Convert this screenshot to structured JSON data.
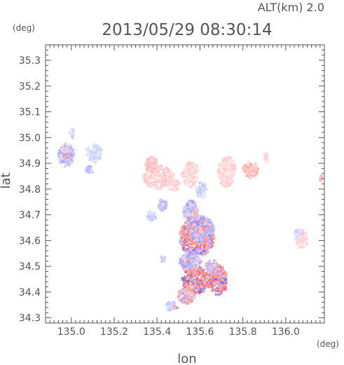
{
  "chart_data": {
    "type": "heatmap",
    "title": "2013/05/29 08:30:14",
    "subtitle": "ALT(km) 2.0",
    "xlabel": "lon",
    "ylabel": "lat",
    "xunit": "(deg)",
    "yunit": "(deg)",
    "xlim": [
      134.88,
      136.18
    ],
    "ylim": [
      34.28,
      35.36
    ],
    "xticks": [
      135.0,
      135.2,
      135.4,
      135.6,
      135.8,
      136.0
    ],
    "xtick_labels": [
      "135.0",
      "135.2",
      "135.4",
      "135.6",
      "135.8",
      "136.0"
    ],
    "yticks": [
      34.3,
      34.4,
      34.5,
      34.6,
      34.7,
      34.8,
      34.9,
      35.0,
      35.1,
      35.2,
      35.3
    ],
    "ytick_labels": [
      "34.3",
      "34.4",
      "34.5",
      "34.6",
      "34.7",
      "34.8",
      "34.9",
      "35.0",
      "35.1",
      "35.2",
      "35.3"
    ],
    "colors": {
      "negative": "#6a6aff",
      "positive": "#ff5a5a",
      "axis": "#555555"
    },
    "regions": [
      {
        "lon": 134.97,
        "lat": 34.935,
        "rlon": 0.035,
        "rlat": 0.045,
        "sign": -1,
        "intensity": 0.55
      },
      {
        "lon": 135.0,
        "lat": 35.02,
        "rlon": 0.012,
        "rlat": 0.02,
        "sign": -1,
        "intensity": 0.3
      },
      {
        "lon": 135.1,
        "lat": 34.945,
        "rlon": 0.035,
        "rlat": 0.035,
        "sign": -1,
        "intensity": 0.3
      },
      {
        "lon": 135.08,
        "lat": 34.88,
        "rlon": 0.018,
        "rlat": 0.015,
        "sign": -1,
        "intensity": 0.45
      },
      {
        "lon": 135.4,
        "lat": 34.85,
        "rlon": 0.07,
        "rlat": 0.045,
        "sign": 1,
        "intensity": 0.35
      },
      {
        "lon": 135.37,
        "lat": 34.9,
        "rlon": 0.03,
        "rlat": 0.03,
        "sign": 1,
        "intensity": 0.4
      },
      {
        "lon": 135.47,
        "lat": 34.82,
        "rlon": 0.03,
        "rlat": 0.02,
        "sign": 1,
        "intensity": 0.3
      },
      {
        "lon": 135.55,
        "lat": 34.86,
        "rlon": 0.04,
        "rlat": 0.05,
        "sign": 1,
        "intensity": 0.3
      },
      {
        "lon": 135.72,
        "lat": 34.87,
        "rlon": 0.04,
        "rlat": 0.06,
        "sign": 1,
        "intensity": 0.3
      },
      {
        "lon": 135.83,
        "lat": 34.88,
        "rlon": 0.035,
        "rlat": 0.035,
        "sign": 1,
        "intensity": 0.45
      },
      {
        "lon": 135.9,
        "lat": 34.93,
        "rlon": 0.01,
        "rlat": 0.02,
        "sign": 1,
        "intensity": 0.3
      },
      {
        "lon": 136.07,
        "lat": 34.61,
        "rlon": 0.03,
        "rlat": 0.035,
        "sign": 1,
        "intensity": 0.3
      },
      {
        "lon": 136.05,
        "lat": 34.63,
        "rlon": 0.018,
        "rlat": 0.02,
        "sign": -1,
        "intensity": 0.3
      },
      {
        "lon": 136.16,
        "lat": 34.845,
        "rlon": 0.01,
        "rlat": 0.012,
        "sign": 1,
        "intensity": 0.5
      },
      {
        "lon": 135.42,
        "lat": 34.74,
        "rlon": 0.02,
        "rlat": 0.025,
        "sign": -1,
        "intensity": 0.45
      },
      {
        "lon": 135.37,
        "lat": 34.7,
        "rlon": 0.02,
        "rlat": 0.02,
        "sign": -1,
        "intensity": 0.35
      },
      {
        "lon": 135.6,
        "lat": 34.8,
        "rlon": 0.025,
        "rlat": 0.03,
        "sign": -1,
        "intensity": 0.35
      },
      {
        "lon": 135.58,
        "lat": 34.62,
        "rlon": 0.08,
        "rlat": 0.08,
        "sign": 1,
        "intensity": 0.8
      },
      {
        "lon": 135.6,
        "lat": 34.65,
        "rlon": 0.06,
        "rlat": 0.05,
        "sign": -1,
        "intensity": 0.6
      },
      {
        "lon": 135.55,
        "lat": 34.72,
        "rlon": 0.035,
        "rlat": 0.04,
        "sign": -1,
        "intensity": 0.55
      },
      {
        "lon": 135.55,
        "lat": 34.52,
        "rlon": 0.05,
        "rlat": 0.04,
        "sign": -1,
        "intensity": 0.55
      },
      {
        "lon": 135.58,
        "lat": 34.45,
        "rlon": 0.07,
        "rlat": 0.05,
        "sign": 1,
        "intensity": 0.85
      },
      {
        "lon": 135.68,
        "lat": 34.45,
        "rlon": 0.04,
        "rlat": 0.06,
        "sign": 1,
        "intensity": 0.85
      },
      {
        "lon": 135.65,
        "lat": 34.5,
        "rlon": 0.03,
        "rlat": 0.03,
        "sign": -1,
        "intensity": 0.6
      },
      {
        "lon": 135.53,
        "lat": 34.39,
        "rlon": 0.04,
        "rlat": 0.03,
        "sign": 1,
        "intensity": 0.6
      },
      {
        "lon": 135.46,
        "lat": 34.35,
        "rlon": 0.025,
        "rlat": 0.018,
        "sign": -1,
        "intensity": 0.35
      },
      {
        "lon": 135.48,
        "lat": 34.345,
        "rlon": 0.01,
        "rlat": 0.008,
        "sign": 1,
        "intensity": 0.8
      },
      {
        "lon": 135.42,
        "lat": 34.53,
        "rlon": 0.012,
        "rlat": 0.015,
        "sign": -1,
        "intensity": 0.4
      }
    ]
  }
}
